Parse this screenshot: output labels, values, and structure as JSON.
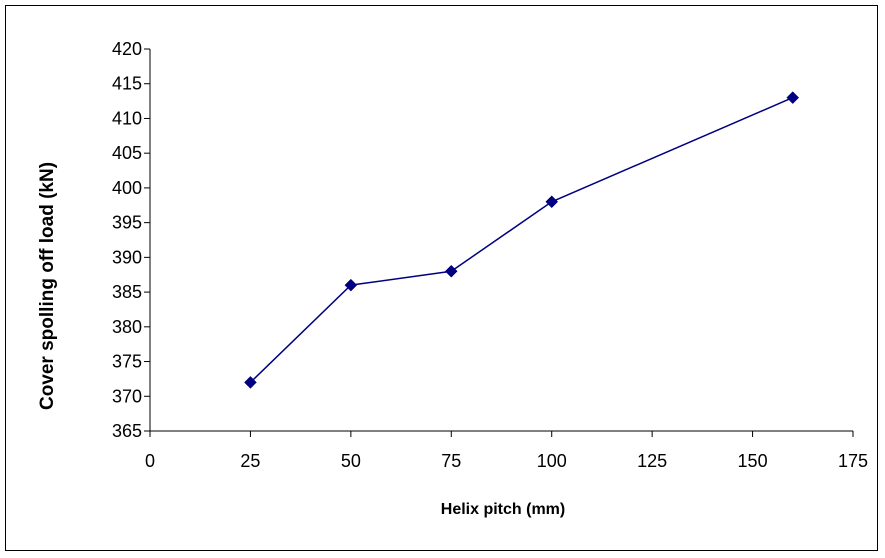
{
  "chart_data": {
    "type": "line",
    "title": "",
    "xlabel": "Helix pitch (mm)",
    "ylabel": "Cover spolling off load (kN)",
    "xlim": [
      0,
      175
    ],
    "ylim": [
      365,
      420
    ],
    "x_ticks": [
      0,
      25,
      50,
      75,
      100,
      125,
      150,
      175
    ],
    "y_ticks": [
      365,
      370,
      375,
      380,
      385,
      390,
      395,
      400,
      405,
      410,
      415,
      420
    ],
    "grid": false,
    "legend": "none",
    "series": [
      {
        "color": "#000080",
        "marker": "diamond",
        "x": [
          25,
          50,
          75,
          100,
          160
        ],
        "y": [
          372,
          386,
          388,
          398,
          413
        ]
      }
    ]
  }
}
